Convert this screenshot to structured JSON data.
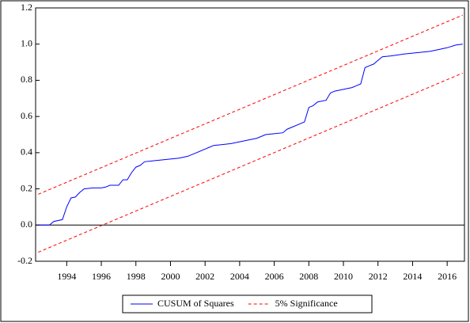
{
  "chart_data": {
    "type": "line",
    "xlim": [
      1992.2,
      2017.0
    ],
    "xticks": [
      1994,
      1996,
      1998,
      2000,
      2002,
      2004,
      2006,
      2008,
      2010,
      2012,
      2014,
      2016
    ],
    "ylim": [
      -0.2,
      1.2
    ],
    "yticks": [
      -0.2,
      {
        "value": 0,
        "label": "0.0"
      },
      0.2,
      0.4,
      0.6,
      0.8,
      {
        "value": 1,
        "label": "1.0"
      },
      1.2
    ],
    "hline": 0,
    "legend": "bottom",
    "series": [
      {
        "name": "CUSUM of Squares",
        "color": "#0000ff",
        "x": [
          1992.35,
          1993.0,
          1993.25,
          1993.75,
          1994.0,
          1994.25,
          1994.5,
          1994.75,
          1995.0,
          1995.5,
          1996.0,
          1996.25,
          1996.5,
          1997.0,
          1997.25,
          1997.5,
          1997.75,
          1998.0,
          1998.25,
          1998.5,
          1999.0,
          1999.5,
          2000.0,
          2000.5,
          2001.0,
          2001.5,
          2002.0,
          2002.25,
          2002.5,
          2003.0,
          2003.5,
          2004.0,
          2004.5,
          2005.0,
          2005.5,
          2006.0,
          2006.5,
          2006.75,
          2007.0,
          2007.5,
          2007.75,
          2008.0,
          2008.25,
          2008.5,
          2009.0,
          2009.25,
          2009.5,
          2010.0,
          2010.5,
          2010.75,
          2011.0,
          2011.25,
          2011.5,
          2011.75,
          2012.0,
          2012.25,
          2012.75,
          2013.5,
          2014.0,
          2014.5,
          2015.0,
          2015.5,
          2016.0,
          2016.5,
          2016.9
        ],
        "values": [
          0.0,
          0.0,
          0.02,
          0.03,
          0.1,
          0.15,
          0.155,
          0.18,
          0.2,
          0.205,
          0.205,
          0.21,
          0.22,
          0.22,
          0.25,
          0.25,
          0.29,
          0.32,
          0.33,
          0.35,
          0.355,
          0.36,
          0.365,
          0.37,
          0.38,
          0.4,
          0.42,
          0.43,
          0.44,
          0.445,
          0.45,
          0.46,
          0.47,
          0.48,
          0.5,
          0.505,
          0.51,
          0.53,
          0.54,
          0.56,
          0.57,
          0.65,
          0.66,
          0.68,
          0.69,
          0.73,
          0.74,
          0.75,
          0.76,
          0.77,
          0.78,
          0.87,
          0.88,
          0.89,
          0.91,
          0.93,
          0.935,
          0.945,
          0.95,
          0.955,
          0.96,
          0.97,
          0.98,
          0.995,
          1.0
        ]
      },
      {
        "name": "5% Significance",
        "color": "#ff0000",
        "dashed": true,
        "x": [
          1992.35,
          2016.9
        ],
        "upper": [
          0.17,
          1.16
        ],
        "lower": [
          -0.15,
          0.84
        ]
      }
    ]
  }
}
